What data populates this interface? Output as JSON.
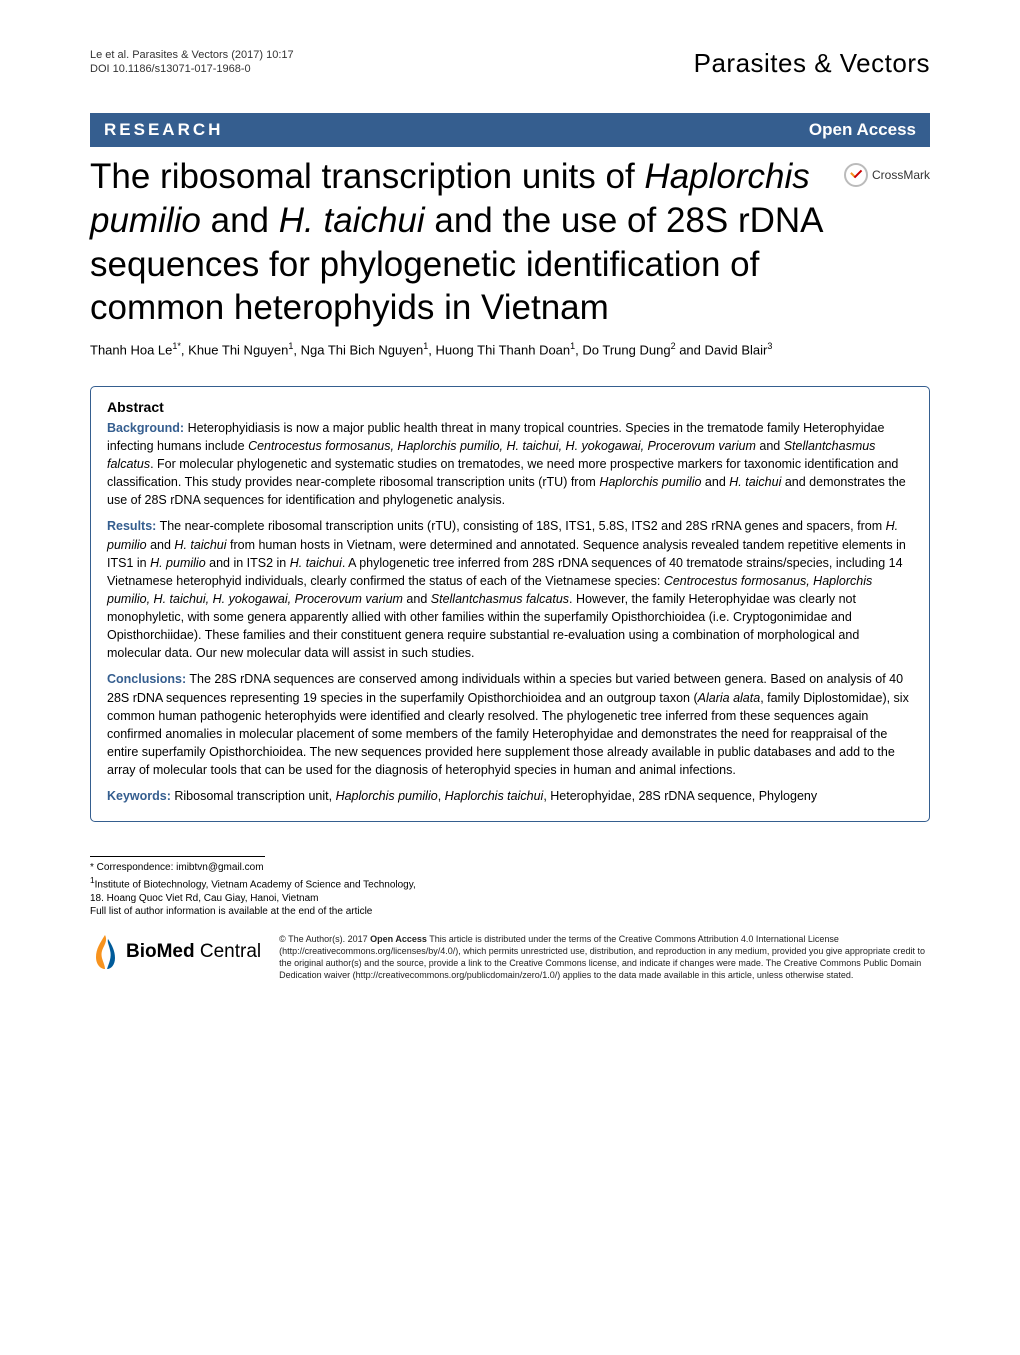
{
  "header": {
    "citation_line1": "Le et al. Parasites & Vectors  (2017) 10:17",
    "citation_line2": "DOI 10.1186/s13071-017-1968-0",
    "journal_name": "Parasites & Vectors"
  },
  "banner": {
    "left": "RESEARCH",
    "right": "Open Access"
  },
  "crossmark_label": "CrossMark",
  "title_parts": {
    "p1": "The ribosomal transcription units of ",
    "p2_italic": "Haplorchis pumilio",
    "p3": " and ",
    "p4_italic": "H. taichui",
    "p5": " and the use of 28S rDNA sequences for phylogenetic identification of common heterophyids in Vietnam"
  },
  "authors_html": "Thanh Hoa Le<sup>1*</sup>, Khue Thi Nguyen<sup>1</sup>, Nga Thi Bich Nguyen<sup>1</sup>, Huong Thi Thanh Doan<sup>1</sup>, Do Trung Dung<sup>2</sup> and David Blair<sup>3</sup>",
  "abstract": {
    "heading": "Abstract",
    "background_label": "Background:",
    "background_text": " Heterophyidiasis is now a major public health threat in many tropical countries. Species in the trematode family Heterophyidae infecting humans include <i>Centrocestus formosanus, Haplorchis pumilio, H. taichui, H. yokogawai, Procerovum varium</i> and <i>Stellantchasmus falcatus</i>. For molecular phylogenetic and systematic studies on trematodes, we need more prospective markers for taxonomic identification and classification. This study provides near-complete ribosomal transcription units (rTU) from <i>Haplorchis pumilio</i> and <i>H. taichui</i> and demonstrates the use of 28S rDNA sequences for identification and phylogenetic analysis.",
    "results_label": "Results:",
    "results_text": " The near-complete ribosomal transcription units (rTU), consisting of 18S, ITS1, 5.8S, ITS2 and 28S rRNA genes and spacers, from <i>H. pumilio</i> and <i>H. taichui</i> from human hosts in Vietnam, were determined and annotated. Sequence analysis revealed tandem repetitive elements in ITS1 in <i>H. pumilio</i> and in ITS2 in <i>H. taichui</i>. A phylogenetic tree inferred from 28S rDNA sequences of 40 trematode strains/species, including 14 Vietnamese heterophyid individuals, clearly confirmed the status of each of the Vietnamese species: <i>Centrocestus formosanus, Haplorchis pumilio, H. taichui, H. yokogawai, Procerovum varium</i> and <i>Stellantchasmus falcatus</i>. However, the family Heterophyidae was clearly not monophyletic, with some genera apparently allied with other families within the superfamily Opisthorchioidea (i.e. Cryptogonimidae and Opisthorchiidae). These families and their constituent genera require substantial re-evaluation using a combination of morphological and molecular data. Our new molecular data will assist in such studies.",
    "conclusions_label": "Conclusions:",
    "conclusions_text": " The 28S rDNA sequences are conserved among individuals within a species but varied between genera. Based on analysis of 40 28S rDNA sequences representing 19 species in the superfamily Opisthorchioidea and an outgroup taxon (<i>Alaria alata</i>, family Diplostomidae), six common human pathogenic heterophyids were identified and clearly resolved. The phylogenetic tree inferred from these sequences again confirmed anomalies in molecular placement of some members of the family Heterophyidae and demonstrates the need for reappraisal of the entire superfamily Opisthorchioidea. The new sequences provided here supplement those already available in public databases and add to the array of molecular tools that can be used for the diagnosis of heterophyid species in human and animal infections.",
    "keywords_label": "Keywords:",
    "keywords_text": " Ribosomal transcription unit, <i>Haplorchis pumilio</i>, <i>Haplorchis taichui</i>, Heterophyidae, 28S rDNA sequence, Phylogeny"
  },
  "correspondence": {
    "line1": "* Correspondence: imibtvn@gmail.com",
    "line2_html": "<sup>1</sup>Institute of Biotechnology, Vietnam Academy of Science and Technology,",
    "line3": "18. Hoang Quoc Viet Rd, Cau Giay, Hanoi, Vietnam",
    "line4": "Full list of author information is available at the end of the article"
  },
  "publisher": {
    "logo_text": "BioMed Central",
    "license_html": "© The Author(s). 2017 <b>Open Access</b> This article is distributed under the terms of the Creative Commons Attribution 4.0 International License (http://creativecommons.org/licenses/by/4.0/), which permits unrestricted use, distribution, and reproduction in any medium, provided you give appropriate credit to the original author(s) and the source, provide a link to the Creative Commons license, and indicate if changes were made. The Creative Commons Public Domain Dedication waiver (http://creativecommons.org/publicdomain/zero/1.0/) applies to the data made available in this article, unless otherwise stated."
  },
  "colors": {
    "banner_bg": "#355e8f",
    "banner_text": "#ffffff",
    "accent": "#355e8f",
    "flame_primary": "#f7931e",
    "flame_secondary": "#005b9a"
  }
}
